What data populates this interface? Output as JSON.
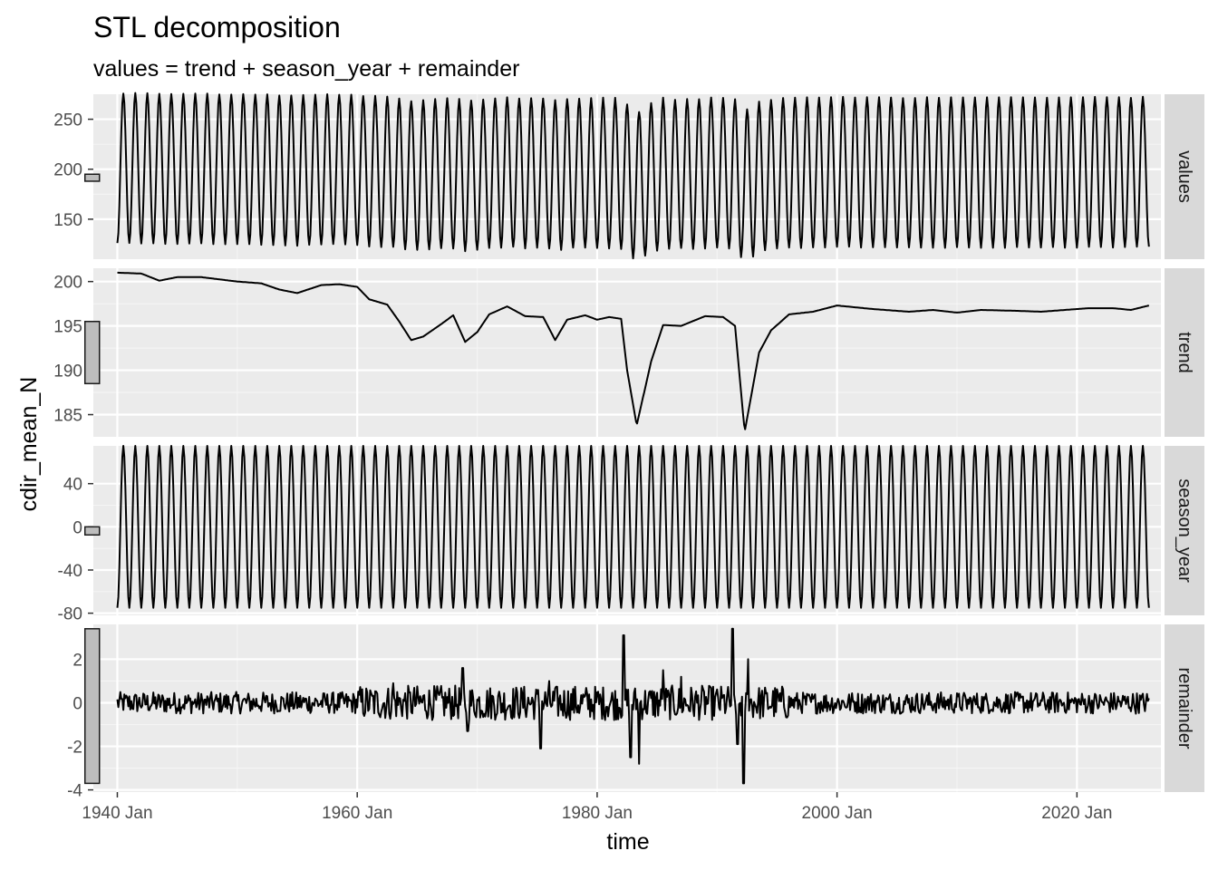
{
  "chart_data": {
    "type": "line",
    "title": "STL decomposition",
    "subtitle": "values = trend + season_year + remainder",
    "xlabel": "time",
    "ylabel": "cdir_mean_N",
    "x_range": [
      "1938-01",
      "2027-01"
    ],
    "x_ticks": [
      "1940 Jan",
      "1960 Jan",
      "1980 Jan",
      "2000 Jan",
      "2020 Jan"
    ],
    "series_start": "1940-01",
    "series_end": "2026-01",
    "grid": true,
    "panels": [
      {
        "name": "values",
        "ylim": [
          110,
          275
        ],
        "yticks": [
          150,
          200,
          250
        ],
        "yticklabels": [
          "150",
          "200",
          "250"
        ],
        "scale_bar": [
          188,
          195
        ],
        "level": 196,
        "amplitude": 75
      },
      {
        "name": "trend",
        "ylim": [
          182.5,
          201.5
        ],
        "yticks": [
          185,
          190,
          195,
          200
        ],
        "yticklabels": [
          "185",
          "190",
          "195",
          "200"
        ],
        "scale_bar": [
          188.5,
          195.5
        ],
        "trend_points": [
          [
            1940.0,
            201.0
          ],
          [
            1942.0,
            200.9
          ],
          [
            1943.5,
            200.1
          ],
          [
            1945.0,
            200.5
          ],
          [
            1947.0,
            200.5
          ],
          [
            1950.0,
            200.0
          ],
          [
            1952.0,
            199.8
          ],
          [
            1953.5,
            199.1
          ],
          [
            1955.0,
            198.7
          ],
          [
            1957.0,
            199.6
          ],
          [
            1958.5,
            199.7
          ],
          [
            1960.0,
            199.4
          ],
          [
            1961.0,
            198.0
          ],
          [
            1962.5,
            197.4
          ],
          [
            1963.5,
            195.5
          ],
          [
            1964.5,
            193.4
          ],
          [
            1965.5,
            193.8
          ],
          [
            1967.0,
            195.2
          ],
          [
            1968.0,
            196.2
          ],
          [
            1969.0,
            193.2
          ],
          [
            1970.0,
            194.3
          ],
          [
            1971.0,
            196.3
          ],
          [
            1972.5,
            197.2
          ],
          [
            1974.0,
            196.1
          ],
          [
            1975.5,
            196.0
          ],
          [
            1976.5,
            193.4
          ],
          [
            1977.5,
            195.7
          ],
          [
            1979.0,
            196.2
          ],
          [
            1980.0,
            195.7
          ],
          [
            1981.0,
            196.0
          ],
          [
            1982.0,
            195.8
          ],
          [
            1982.5,
            190.0
          ],
          [
            1983.3,
            183.8
          ],
          [
            1984.5,
            191.0
          ],
          [
            1985.5,
            195.1
          ],
          [
            1987.0,
            195.0
          ],
          [
            1989.0,
            196.1
          ],
          [
            1990.5,
            196.0
          ],
          [
            1991.5,
            195.0
          ],
          [
            1992.3,
            183.1
          ],
          [
            1993.5,
            192.0
          ],
          [
            1994.5,
            194.5
          ],
          [
            1996.0,
            196.3
          ],
          [
            1998.0,
            196.6
          ],
          [
            2000.0,
            197.3
          ],
          [
            2003.0,
            196.9
          ],
          [
            2006.0,
            196.6
          ],
          [
            2008.0,
            196.8
          ],
          [
            2010.0,
            196.5
          ],
          [
            2012.0,
            196.8
          ],
          [
            2015.0,
            196.7
          ],
          [
            2017.0,
            196.6
          ],
          [
            2019.0,
            196.8
          ],
          [
            2021.0,
            197.0
          ],
          [
            2023.0,
            197.0
          ],
          [
            2024.5,
            196.8
          ],
          [
            2026.0,
            197.3
          ]
        ]
      },
      {
        "name": "season_year",
        "ylim": [
          -82,
          75
        ],
        "yticks": [
          -80,
          -40,
          0,
          40
        ],
        "yticklabels": [
          "-80",
          "-40",
          "0",
          "40"
        ],
        "scale_bar": [
          -7.5,
          0.0
        ],
        "amplitude": 75
      },
      {
        "name": "remainder",
        "ylim": [
          -4.1,
          3.6
        ],
        "yticks": [
          -4,
          -2,
          0,
          2
        ],
        "yticklabels": [
          "-4",
          "-2",
          "0",
          "2"
        ],
        "scale_bar": [
          -3.7,
          3.4
        ],
        "spikes": [
          [
            1968.8,
            1.6
          ],
          [
            1969.2,
            -1.3
          ],
          [
            1975.3,
            -2.1
          ],
          [
            1982.2,
            3.1
          ],
          [
            1982.8,
            -2.5
          ],
          [
            1983.5,
            -2.8
          ],
          [
            1985.5,
            1.5
          ],
          [
            1991.3,
            3.4
          ],
          [
            1991.7,
            -1.9
          ],
          [
            1992.2,
            -3.7
          ],
          [
            1992.6,
            2.0
          ],
          [
            1987.0,
            1.2
          ],
          [
            1976.0,
            1.0
          ],
          [
            1963.0,
            0.9
          ]
        ]
      }
    ]
  }
}
